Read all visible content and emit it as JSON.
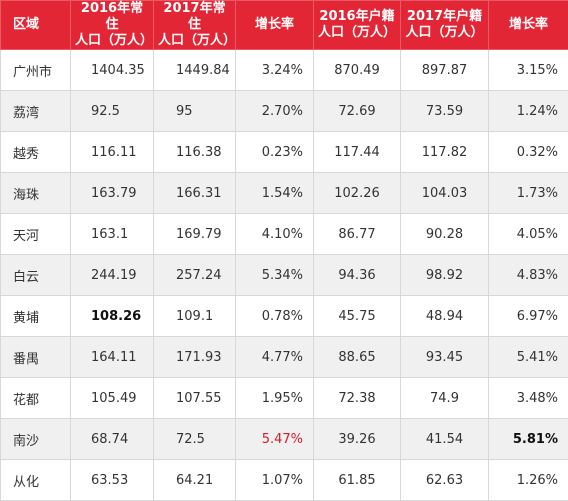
{
  "table": {
    "headers": [
      [
        "区域"
      ],
      [
        "2016年常住",
        "人口（万人）"
      ],
      [
        "2017年常住",
        "人口（万人）"
      ],
      [
        "增长率"
      ],
      [
        "2016年户籍",
        "人口（万人）"
      ],
      [
        "2017年户籍",
        "人口（万人）"
      ],
      [
        "增长率"
      ]
    ],
    "rows": [
      [
        "广州市",
        "1404.35",
        "1449.84",
        "3.24%",
        "870.49",
        "897.87",
        "3.15%"
      ],
      [
        "荔湾",
        "92.5",
        "95",
        "2.70%",
        "72.69",
        "73.59",
        "1.24%"
      ],
      [
        "越秀",
        "116.11",
        "116.38",
        "0.23%",
        "117.44",
        "117.82",
        "0.32%"
      ],
      [
        "海珠",
        "163.79",
        "166.31",
        "1.54%",
        "102.26",
        "104.03",
        "1.73%"
      ],
      [
        "天河",
        "163.1",
        "169.79",
        "4.10%",
        "86.77",
        "90.28",
        "4.05%"
      ],
      [
        "白云",
        "244.19",
        "257.24",
        "5.34%",
        "94.36",
        "98.92",
        "4.83%"
      ],
      [
        "黄埔",
        "108.26",
        "109.1",
        "0.78%",
        "45.75",
        "48.94",
        "6.97%"
      ],
      [
        "番禺",
        "164.11",
        "171.93",
        "4.77%",
        "88.65",
        "93.45",
        "5.41%"
      ],
      [
        "花都",
        "105.49",
        "107.55",
        "1.95%",
        "72.38",
        "74.9",
        "3.48%"
      ],
      [
        "南沙",
        "68.74",
        "72.5",
        "5.47%",
        "39.26",
        "41.54",
        "5.81%"
      ],
      [
        "从化",
        "63.53",
        "64.21",
        "1.07%",
        "61.85",
        "62.63",
        "1.26%"
      ]
    ],
    "highlights": {
      "header_color": "#e32636",
      "red_text_color": "#d01f2b",
      "red_cells": [
        [
          9,
          3
        ]
      ],
      "bold_cells": [
        [
          6,
          1
        ],
        [
          9,
          6
        ]
      ]
    }
  }
}
